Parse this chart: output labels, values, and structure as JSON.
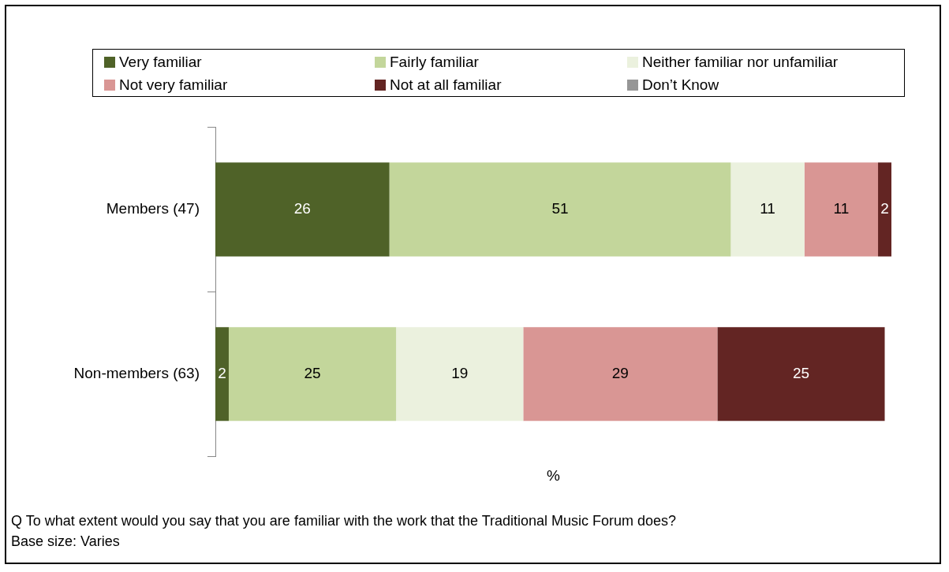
{
  "chart_data": {
    "type": "bar",
    "orientation": "horizontal",
    "stacked": true,
    "data_labels": true,
    "legend": "top",
    "grid": false,
    "xlabel": "%",
    "categories": [
      "Members (47)",
      "Non-members (63)"
    ],
    "series": [
      {
        "name": "Very familiar",
        "color": "#4f6228",
        "values": [
          26,
          2
        ]
      },
      {
        "name": "Fairly familiar",
        "color": "#c3d69b",
        "values": [
          51,
          25
        ]
      },
      {
        "name": "Neither familiar nor unfamiliar",
        "color": "#ebf1de",
        "values": [
          11,
          19
        ]
      },
      {
        "name": "Not very familiar",
        "color": "#d99694",
        "values": [
          11,
          29
        ]
      },
      {
        "name": "Not at all familiar",
        "color": "#632523",
        "values": [
          2,
          25
        ]
      },
      {
        "name": "Don’t Know",
        "color": "#969696",
        "values": [
          null,
          null
        ]
      }
    ],
    "annotations": [
      "Q  To what extent would you say that you are familiar with the work that the Traditional Music Forum does?",
      "Base size: Varies"
    ]
  }
}
